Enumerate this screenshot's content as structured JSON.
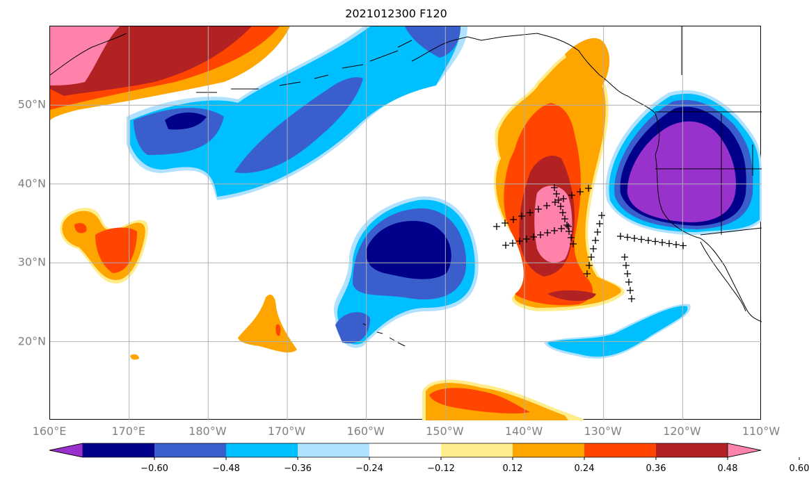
{
  "title": "2021012300 F120",
  "map": {
    "extent": {
      "lon_min": 160,
      "lon_max": 250,
      "lat_min": 10,
      "lat_max": 60
    },
    "gridlines": true,
    "lon_ticks": [
      {
        "lon": 160,
        "label": "160°E"
      },
      {
        "lon": 170,
        "label": "170°E"
      },
      {
        "lon": 180,
        "label": "180°W"
      },
      {
        "lon": 190,
        "label": "170°W"
      },
      {
        "lon": 200,
        "label": "160°W"
      },
      {
        "lon": 210,
        "label": "150°W"
      },
      {
        "lon": 220,
        "label": "140°W"
      },
      {
        "lon": 230,
        "label": "130°W"
      },
      {
        "lon": 240,
        "label": "120°W"
      },
      {
        "lon": 250,
        "label": "110°W"
      }
    ],
    "lat_ticks": [
      {
        "lat": 20,
        "label": "20°N"
      },
      {
        "lat": 30,
        "label": "30°N"
      },
      {
        "lat": 40,
        "label": "40°N"
      },
      {
        "lat": 50,
        "label": "50°N"
      }
    ]
  },
  "colorbar": {
    "colors": [
      "#9932CC",
      "#00008B",
      "#3A5FCD",
      "#00BFFF",
      "#B0E2FF",
      "#FFFFFF",
      "#FFEC8B",
      "#FFA500",
      "#FF4500",
      "#B22222",
      "#FF82AB"
    ],
    "tick_labels": [
      "−0.60",
      "−0.48",
      "−0.36",
      "−0.24",
      "−0.12",
      "0.12",
      "0.24",
      "0.36",
      "0.48",
      "0.60"
    ],
    "extend": "both"
  },
  "colors": {
    "grid": "#b0b0b0",
    "coast": "#000000",
    "markers": "#000000"
  }
}
